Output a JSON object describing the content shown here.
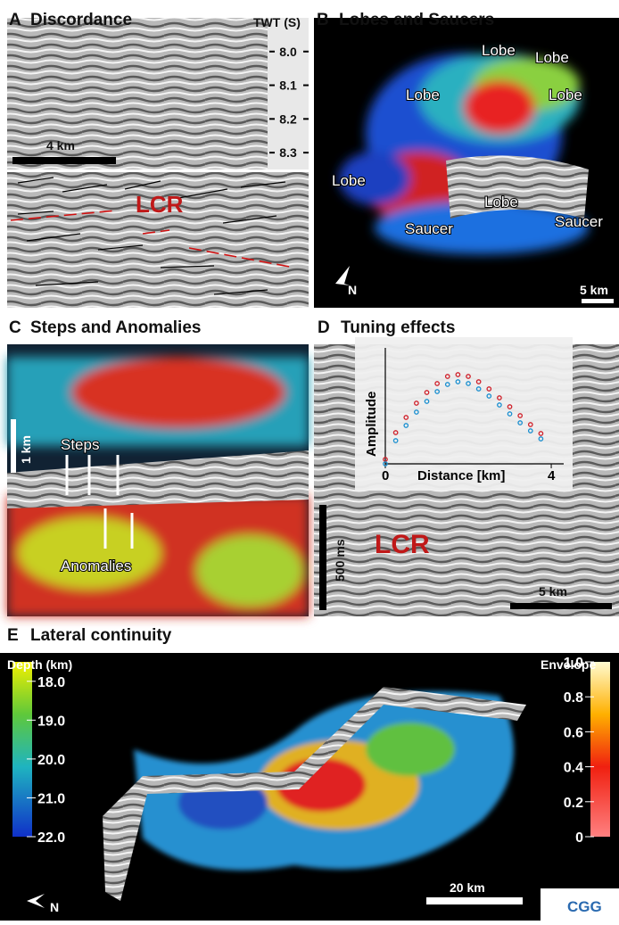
{
  "panels": {
    "A": {
      "letter": "A",
      "title": "Discordance",
      "axis_label": "TWT (S)",
      "ylim": [
        7.9,
        8.35
      ],
      "yticks": [
        {
          "value": 8,
          "label": "8.0"
        },
        8.1,
        8.2,
        8.3
      ],
      "scale_bar": "4 km",
      "annotation": "LCR"
    },
    "B": {
      "letter": "B",
      "title": "Lobes and Saucers",
      "labels": [
        "Lobe",
        "Lobe",
        "Lobe",
        "Lobe",
        "Lobe",
        "Lobe",
        "Saucer",
        "Saucer"
      ],
      "north": "N",
      "scale_bar": "5 km"
    },
    "C": {
      "letter": "C",
      "title": "Steps and Anomalies",
      "labels": [
        "Steps",
        "Anomalies"
      ],
      "scale_bar": "1 km"
    },
    "D": {
      "letter": "D",
      "title": "Tuning effects",
      "annotation": "LCR",
      "scale_bar_time": "500 ms",
      "scale_bar": "5 km",
      "inset": {
        "xlabel": "Distance [km]",
        "ylabel": "Amplitude",
        "xlim": [
          0,
          4.3
        ],
        "ylim": [
          0,
          1.1
        ],
        "xticks": [
          0,
          4
        ],
        "x": [
          0,
          0.25,
          0.5,
          0.75,
          1,
          1.25,
          1.5,
          1.75,
          2,
          2.25,
          2.5,
          2.75,
          3,
          3.25,
          3.5,
          3.75
        ],
        "series": [
          {
            "color": "#d0202a",
            "values": [
              0.05,
              0.35,
              0.52,
              0.68,
              0.8,
              0.9,
              0.98,
              1.0,
              0.98,
              0.92,
              0.84,
              0.74,
              0.64,
              0.54,
              0.44,
              0.34
            ]
          },
          {
            "color": "#1a8fd0",
            "values": [
              0.04,
              0.3,
              0.47,
              0.62,
              0.74,
              0.85,
              0.93,
              0.96,
              0.94,
              0.88,
              0.8,
              0.7,
              0.6,
              0.5,
              0.41,
              0.32
            ]
          }
        ]
      }
    },
    "E": {
      "letter": "E",
      "title": "Lateral continuity",
      "colorbar_left": {
        "label": "Depth (km)",
        "lim": [
          17.5,
          22
        ],
        "ticks": [
          {
            "value": 18,
            "label": "18.0"
          },
          {
            "value": 19,
            "label": "19.0"
          },
          {
            "value": 20,
            "label": "20.0"
          },
          {
            "value": 21,
            "label": "21.0"
          },
          {
            "value": 22,
            "label": "22.0"
          }
        ]
      },
      "colorbar_right": {
        "label": "Envelope",
        "lim": [
          0,
          1
        ],
        "ticks": [
          {
            "value": 1,
            "label": "1.0"
          },
          0.8,
          0.6,
          0.4,
          0.2,
          0
        ]
      },
      "north": "N",
      "scale_bar": "20 km",
      "logo": "CGG"
    }
  }
}
